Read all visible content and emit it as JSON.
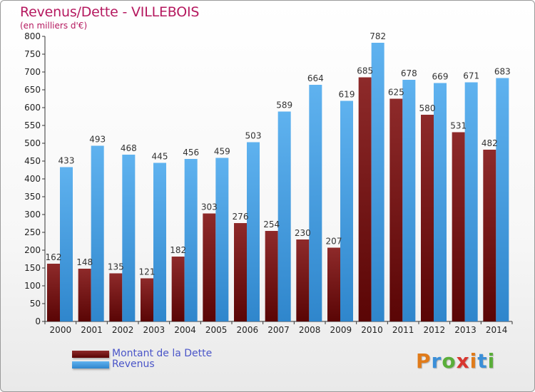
{
  "colors": {
    "title": "#b5195f",
    "dette": "#7a1a1a",
    "revenus": "#4aa3e6",
    "legend_text": "#4a55c8"
  },
  "logo_text": "Proxiti",
  "chart_data": {
    "type": "bar",
    "title": "Revenus/Dette - VILLEBOIS",
    "subtitle": "(en milliers d'€)",
    "categories": [
      "2000",
      "2001",
      "2002",
      "2003",
      "2004",
      "2005",
      "2006",
      "2007",
      "2008",
      "2009",
      "2010",
      "2011",
      "2012",
      "2013",
      "2014"
    ],
    "series": [
      {
        "name": "Montant de la Dette",
        "values": [
          162,
          148,
          135,
          121,
          182,
          303,
          276,
          254,
          230,
          207,
          685,
          625,
          580,
          531,
          482
        ]
      },
      {
        "name": "Revenus",
        "values": [
          433,
          493,
          468,
          445,
          456,
          459,
          503,
          589,
          664,
          619,
          782,
          678,
          669,
          671,
          683
        ]
      }
    ],
    "ylim": [
      0,
      800
    ],
    "yticks": [
      0,
      50,
      100,
      150,
      200,
      250,
      300,
      350,
      400,
      450,
      500,
      550,
      600,
      650,
      700,
      750,
      800
    ],
    "grid": false,
    "legend": "bottom-left"
  }
}
